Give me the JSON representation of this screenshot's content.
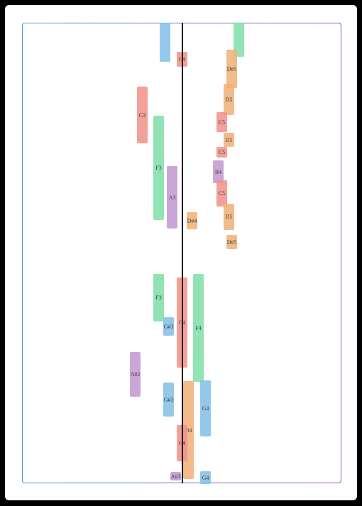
{
  "notes": [
    {
      "color": "#85c1e9"
    },
    {
      "label": "C4",
      "color": "#f1948a"
    },
    {
      "color": "#82e0aa"
    },
    {
      "label": "D#5",
      "color": "#f0b27a"
    },
    {
      "label": "D5",
      "color": "#f0b27a"
    },
    {
      "label": "C3",
      "color": "#f1948a"
    },
    {
      "label": "C5",
      "color": "#f1948a"
    },
    {
      "label": "D5",
      "color": "#f0b27a"
    },
    {
      "label": "C5",
      "color": "#f1948a"
    },
    {
      "label": "F3",
      "color": "#82e0aa"
    },
    {
      "label": "B4",
      "color": "#c39bd3"
    },
    {
      "label": "A3",
      "color": "#c39bd3"
    },
    {
      "label": "C5",
      "color": "#f1948a"
    },
    {
      "label": "D#4",
      "color": "#f0b27a"
    },
    {
      "label": "D5",
      "color": "#f0b27a"
    },
    {
      "label": "D#5",
      "color": "#f0b27a"
    },
    {
      "label": "F3",
      "color": "#82e0aa"
    },
    {
      "label": "C4",
      "color": "#f1948a"
    },
    {
      "label": "F4",
      "color": "#82e0aa"
    },
    {
      "label": "G#3",
      "color": "#85c1e9"
    },
    {
      "label": "A#2",
      "color": "#c39bd3"
    },
    {
      "label": "G#3",
      "color": "#85c1e9"
    },
    {
      "label": "D4",
      "color": "#f0b27a"
    },
    {
      "label": "G4",
      "color": "#85c1e9"
    },
    {
      "label": "C4",
      "color": "#f1948a"
    },
    {
      "label": "A#3",
      "color": "#c39bd3"
    },
    {
      "label": "G4",
      "color": "#85c1e9"
    }
  ]
}
